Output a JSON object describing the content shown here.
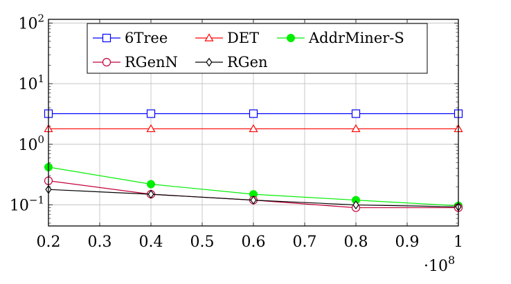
{
  "chart_data": {
    "type": "line",
    "title": "",
    "xlabel": "",
    "ylabel": "",
    "x_scale_label": "·10^8",
    "x_scale_base": "·10",
    "x_scale_exp": "8",
    "xlim": [
      0.2,
      1.0
    ],
    "ylim": [
      0.045,
      115
    ],
    "yscale": "log",
    "grid": true,
    "legend_position": "top",
    "x_ticks": [
      "0.2",
      "0.3",
      "0.4",
      "0.5",
      "0.6",
      "0.7",
      "0.8",
      "0.9",
      "1"
    ],
    "x_tick_values": [
      0.2,
      0.3,
      0.4,
      0.5,
      0.6,
      0.7,
      0.8,
      0.9,
      1.0
    ],
    "y_ticks": [
      {
        "value": 0.1,
        "base": "10",
        "exp": "−1"
      },
      {
        "value": 1,
        "base": "10",
        "exp": "0"
      },
      {
        "value": 10,
        "base": "10",
        "exp": "1"
      },
      {
        "value": 100,
        "base": "10",
        "exp": "2"
      }
    ],
    "x": [
      0.2,
      0.4,
      0.6,
      0.8,
      1.0
    ],
    "series": [
      {
        "name": "6Tree",
        "values": [
          3.2,
          3.2,
          3.2,
          3.2,
          3.2
        ],
        "color": "#0000ff",
        "marker": "square"
      },
      {
        "name": "DET",
        "values": [
          1.8,
          1.8,
          1.8,
          1.8,
          1.8
        ],
        "color": "#ff0000",
        "marker": "triangle"
      },
      {
        "name": "AddrMiner-S",
        "values": [
          0.42,
          0.22,
          0.15,
          0.12,
          0.097
        ],
        "color": "#00ee00",
        "marker": "filled-circle"
      },
      {
        "name": "RGenN",
        "values": [
          0.25,
          0.15,
          0.12,
          0.09,
          0.09
        ],
        "color": "#c2003a",
        "marker": "circle"
      },
      {
        "name": "RGen",
        "values": [
          0.18,
          0.15,
          0.12,
          0.1,
          0.093
        ],
        "color": "#000000",
        "marker": "diamond"
      }
    ]
  }
}
